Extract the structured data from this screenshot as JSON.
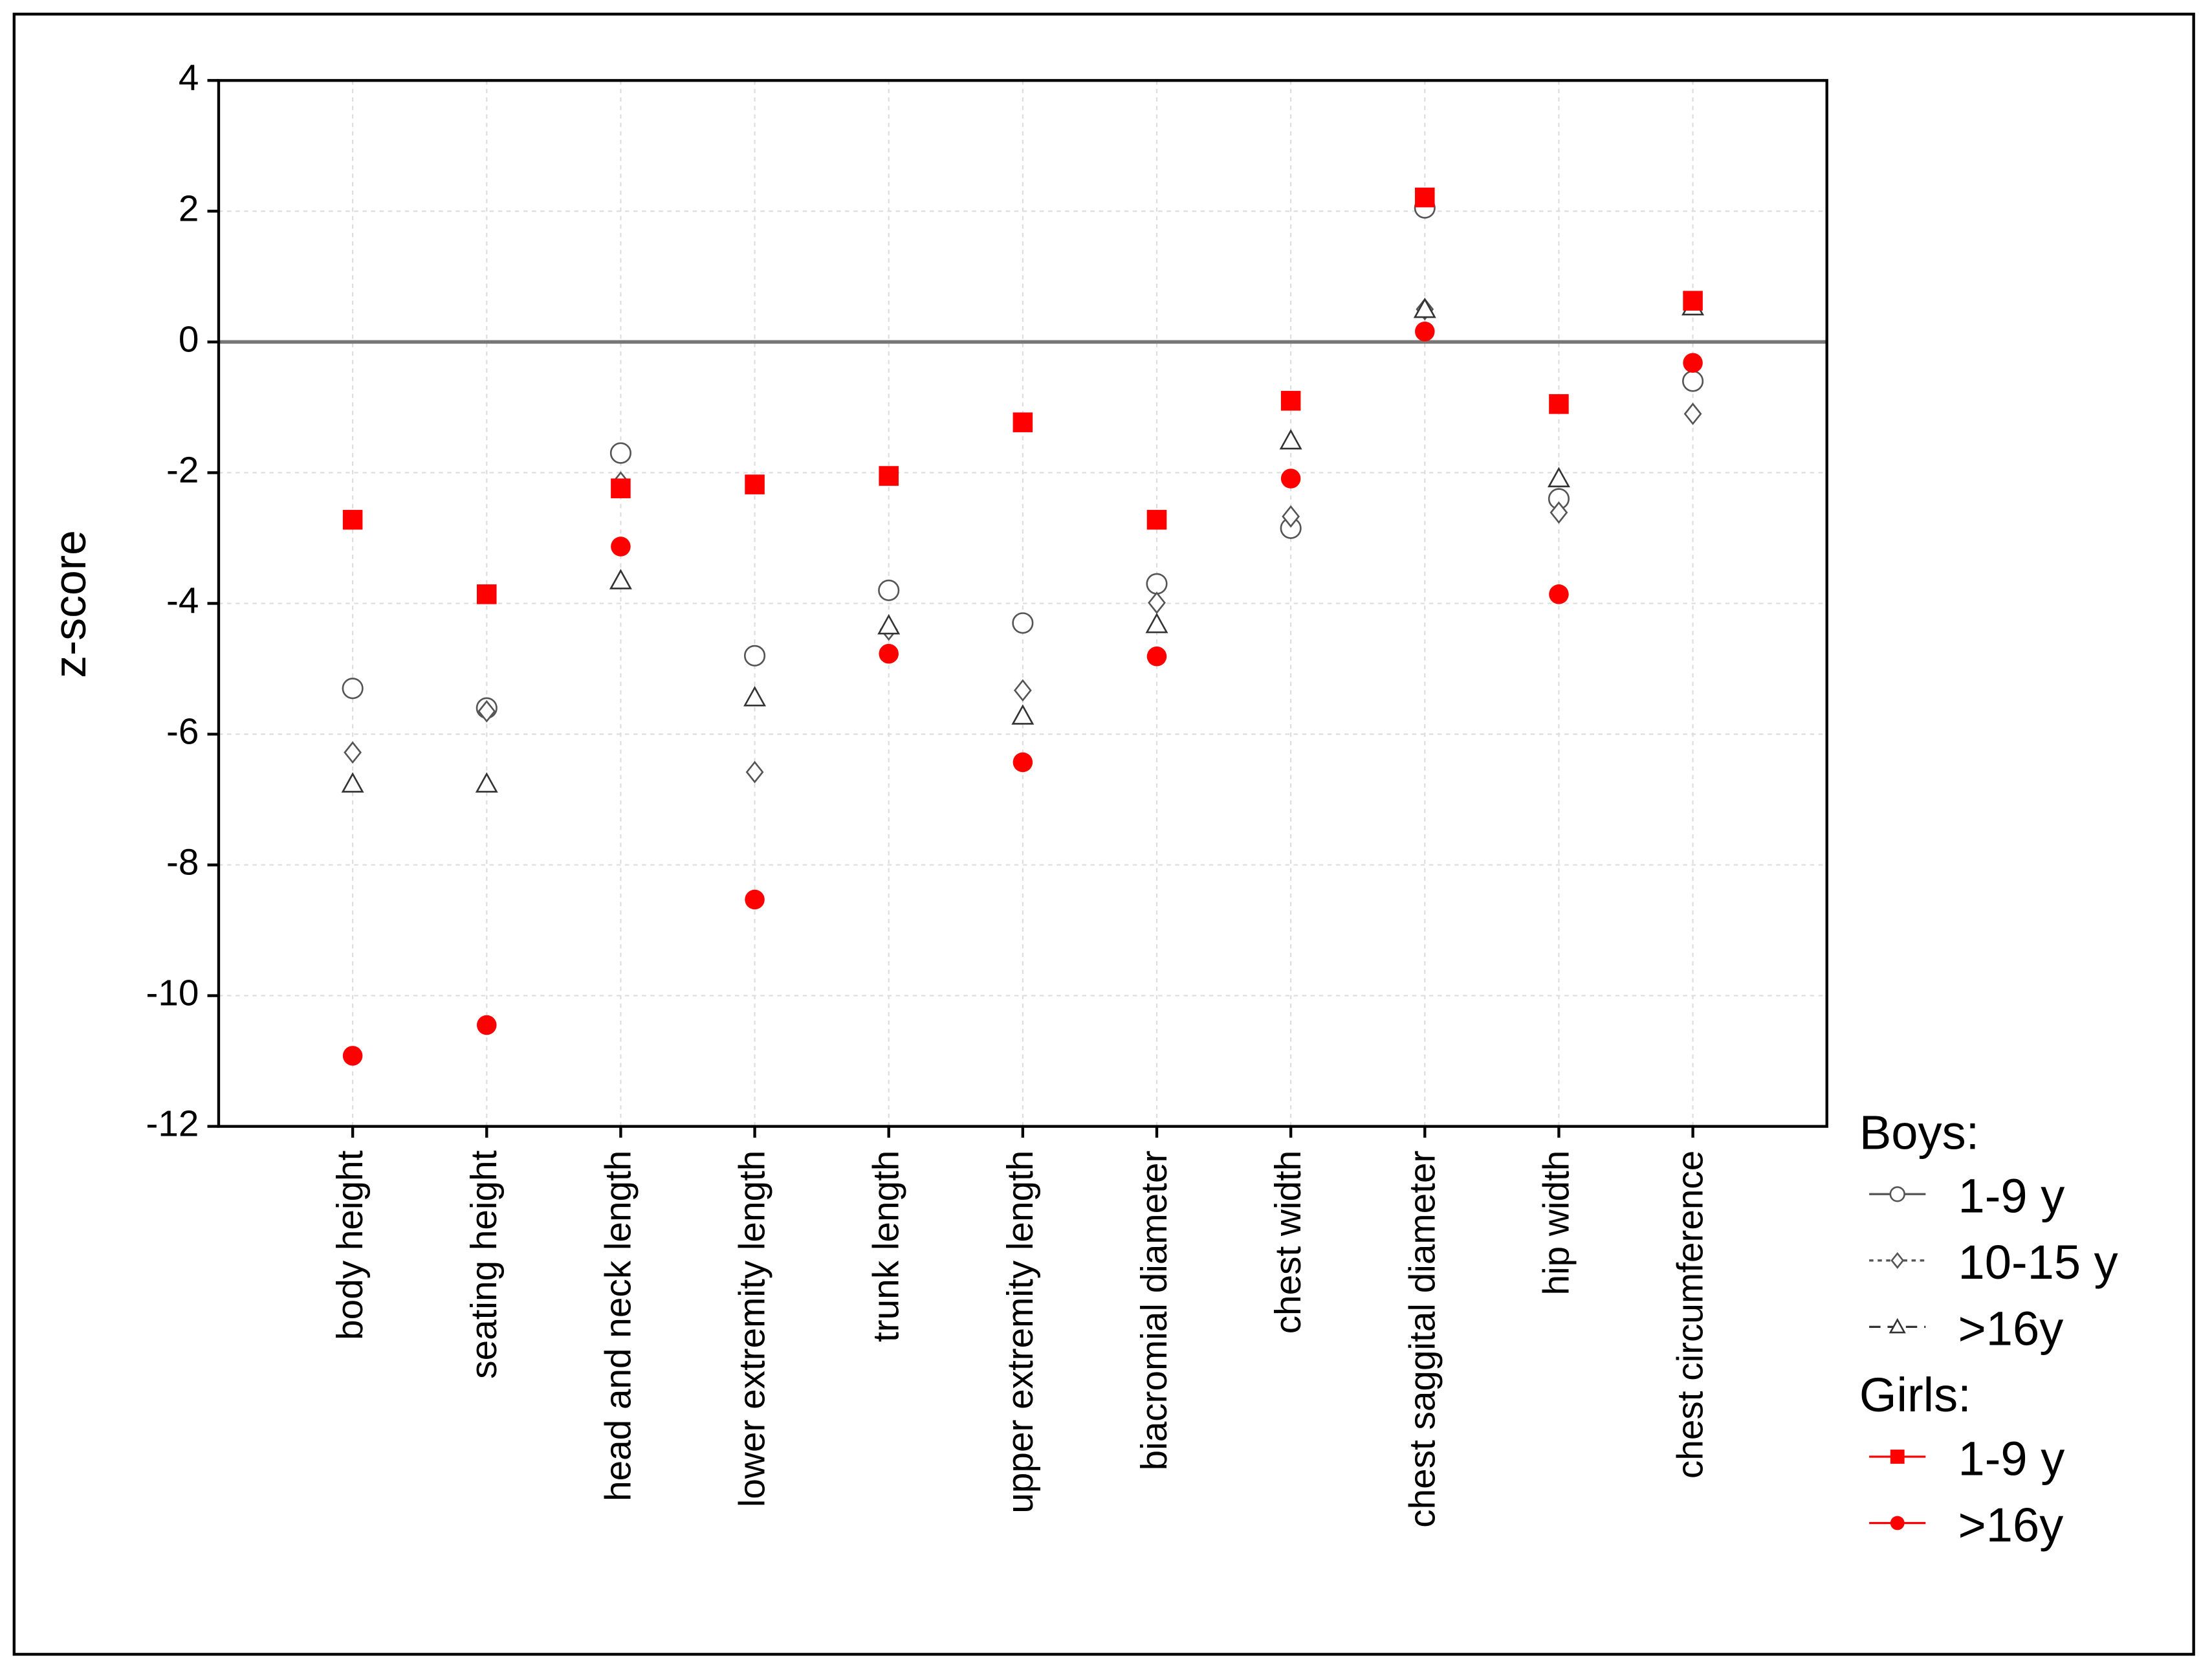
{
  "chart_data": {
    "type": "scatter",
    "y_label": "z-score",
    "categories": [
      "body height",
      "seating height",
      "head and neck length",
      "lower extremity length",
      "trunk length",
      "upper extremity length",
      "biacromial diameter",
      "chest width",
      "chest saggital diameter",
      "hip width",
      "chest circumference"
    ],
    "ylim": [
      -12,
      4
    ],
    "yticks": [
      -12,
      -10,
      -8,
      -6,
      -4,
      -2,
      0,
      2,
      4
    ],
    "grid": true,
    "zero_line": true,
    "legend": "right",
    "series": [
      {
        "group": "Boys:",
        "name": "1-9 y",
        "color": "#555555",
        "marker": "circle",
        "filled": false,
        "dash": "none",
        "values": [
          -5.3,
          -5.6,
          -1.7,
          -4.8,
          -3.8,
          -4.3,
          -3.7,
          -2.85,
          2.05,
          -2.4,
          -0.6
        ]
      },
      {
        "group": "Boys:",
        "name": "10-15 y",
        "color": "#555555",
        "marker": "diamond",
        "filled": false,
        "dash": "3,3",
        "values": [
          -6.28,
          -5.65,
          -2.15,
          -6.58,
          -4.4,
          -5.33,
          -3.99,
          -2.67,
          0.5,
          -2.61,
          -1.1
        ]
      },
      {
        "group": "Boys:",
        "name": ">16y",
        "color": "#333333",
        "marker": "triangle",
        "filled": false,
        "dash": "8,5",
        "values": [
          -6.76,
          -6.76,
          -3.65,
          -5.44,
          -4.34,
          -5.72,
          -4.32,
          -1.51,
          0.5,
          -2.09,
          0.54
        ]
      },
      {
        "group": "Girls:",
        "name": "1-9 y",
        "color": "#ff0000",
        "marker": "square",
        "filled": true,
        "dash": "none",
        "values": [
          -2.72,
          -3.86,
          -2.24,
          -2.18,
          -2.05,
          -1.23,
          -2.72,
          -0.9,
          2.21,
          -0.95,
          0.63
        ]
      },
      {
        "group": "Girls:",
        "name": ">16y",
        "color": "#ff0000",
        "marker": "circle",
        "filled": true,
        "dash": "none",
        "values": [
          -10.92,
          -10.45,
          -3.13,
          -8.53,
          -4.77,
          -6.43,
          -4.81,
          -2.09,
          0.16,
          -3.86,
          -0.32
        ]
      }
    ]
  }
}
